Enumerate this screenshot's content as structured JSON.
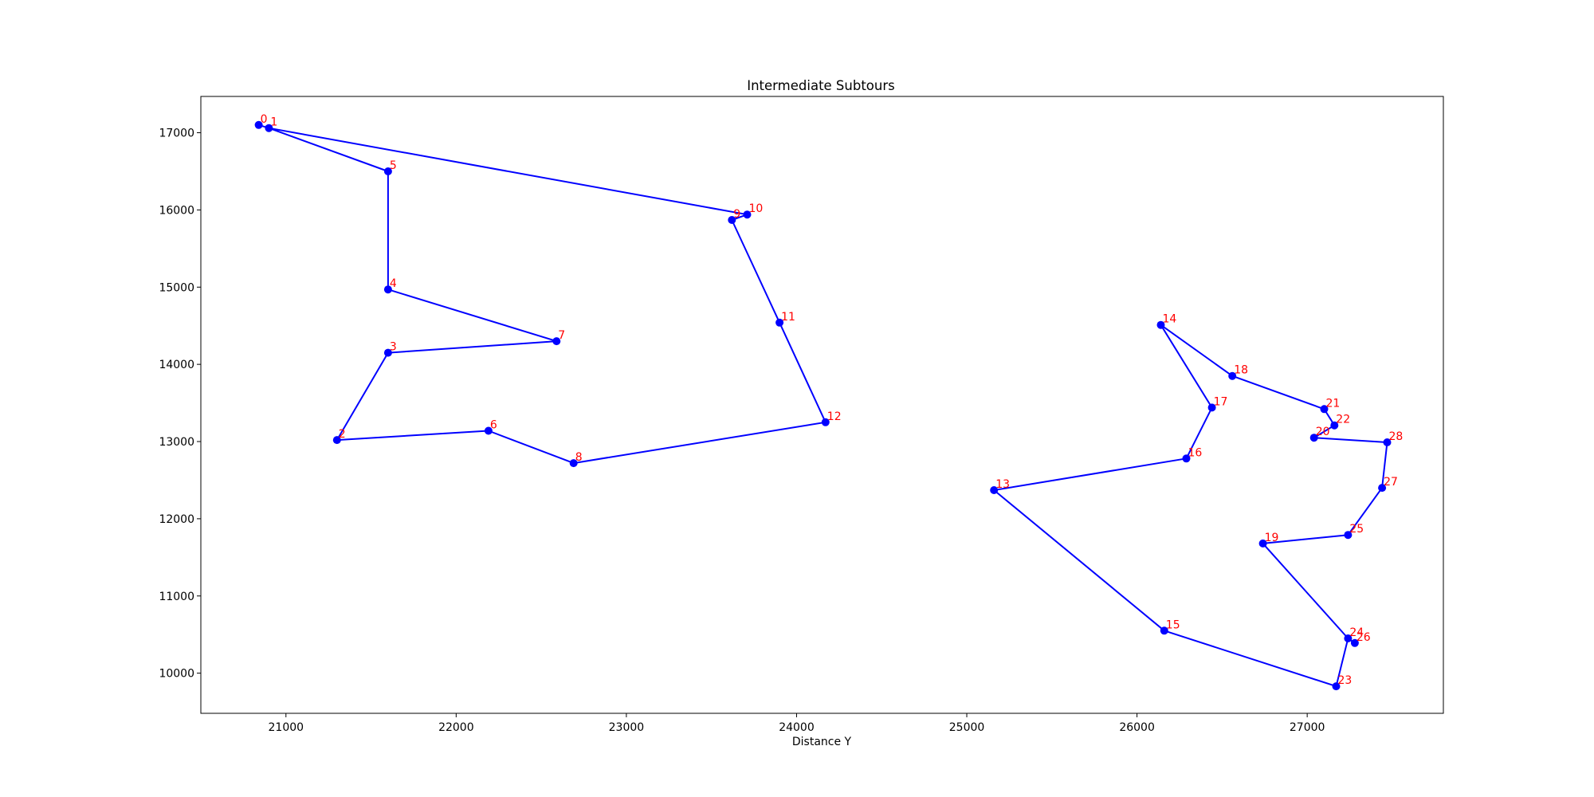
{
  "chart_data": {
    "type": "line",
    "title": "Intermediate Subtours",
    "xlabel": "Distance Y",
    "ylabel": "",
    "xlim": [
      20500,
      27800
    ],
    "ylim": [
      9480,
      17470
    ],
    "xticks": [
      21000,
      22000,
      23000,
      24000,
      25000,
      26000,
      27000
    ],
    "yticks": [
      10000,
      11000,
      12000,
      13000,
      14000,
      15000,
      16000,
      17000
    ],
    "grid": false,
    "line_color": "#0000ff",
    "marker_color": "#0000ff",
    "label_color": "#ff0000",
    "points": [
      {
        "id": "0",
        "x": 20840,
        "y": 17100
      },
      {
        "id": "1",
        "x": 20900,
        "y": 17060
      },
      {
        "id": "2",
        "x": 21300,
        "y": 13020
      },
      {
        "id": "3",
        "x": 21600,
        "y": 14150
      },
      {
        "id": "4",
        "x": 21600,
        "y": 14970
      },
      {
        "id": "5",
        "x": 21600,
        "y": 16500
      },
      {
        "id": "6",
        "x": 22190,
        "y": 13140
      },
      {
        "id": "7",
        "x": 22590,
        "y": 14300
      },
      {
        "id": "8",
        "x": 22690,
        "y": 12720
      },
      {
        "id": "9",
        "x": 23620,
        "y": 15870
      },
      {
        "id": "10",
        "x": 23710,
        "y": 15940
      },
      {
        "id": "11",
        "x": 23900,
        "y": 14540
      },
      {
        "id": "12",
        "x": 24170,
        "y": 13250
      },
      {
        "id": "13",
        "x": 25160,
        "y": 12370
      },
      {
        "id": "14",
        "x": 26140,
        "y": 14510
      },
      {
        "id": "15",
        "x": 26160,
        "y": 10550
      },
      {
        "id": "16",
        "x": 26290,
        "y": 12780
      },
      {
        "id": "17",
        "x": 26440,
        "y": 13440
      },
      {
        "id": "18",
        "x": 26560,
        "y": 13850
      },
      {
        "id": "19",
        "x": 26740,
        "y": 11680
      },
      {
        "id": "20",
        "x": 27040,
        "y": 13050
      },
      {
        "id": "21",
        "x": 27100,
        "y": 13420
      },
      {
        "id": "22",
        "x": 27160,
        "y": 13210
      },
      {
        "id": "23",
        "x": 27170,
        "y": 9830
      },
      {
        "id": "24",
        "x": 27240,
        "y": 10450
      },
      {
        "id": "25",
        "x": 27240,
        "y": 11790
      },
      {
        "id": "26",
        "x": 27280,
        "y": 10390
      },
      {
        "id": "27",
        "x": 27440,
        "y": 12400
      },
      {
        "id": "28",
        "x": 27470,
        "y": 12990
      }
    ],
    "subtours": [
      [
        "0",
        "1",
        "10",
        "9",
        "11",
        "12",
        "8",
        "6",
        "2",
        "3",
        "7",
        "4",
        "5",
        "1"
      ],
      [
        "13",
        "16",
        "17",
        "14",
        "18",
        "21",
        "22",
        "20",
        "28",
        "27",
        "25",
        "19",
        "24",
        "26",
        "24",
        "23",
        "15",
        "13"
      ]
    ]
  }
}
